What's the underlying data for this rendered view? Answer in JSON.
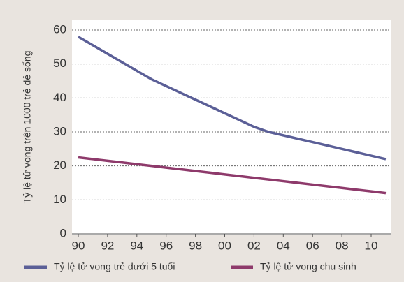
{
  "chart_data": {
    "type": "line",
    "y_label": "Tỷ lệ tử vong trên 1000 trẻ đẻ sống",
    "categories": [
      "90",
      null,
      "92",
      null,
      "94",
      null,
      "96",
      null,
      "98",
      null,
      "00",
      null,
      "02",
      null,
      "04",
      null,
      "06",
      null,
      "08",
      null,
      "10",
      null
    ],
    "series": [
      {
        "name": "Tỷ lệ tử vong trẻ dưới 5 tuổi",
        "color": "#5b5f97",
        "values": [
          58,
          55.5,
          53,
          50.5,
          48,
          45.5,
          43.5,
          41.5,
          39.5,
          37.5,
          35.5,
          33.5,
          31.5,
          30,
          29,
          28,
          27,
          26,
          25,
          24,
          23,
          22
        ]
      },
      {
        "name": "Tỷ lệ tử vong chu sinh",
        "color": "#8e3a6b",
        "values": [
          22.5,
          22,
          21.5,
          21,
          20.5,
          20,
          19.5,
          19,
          18.5,
          18,
          17.5,
          17,
          16.5,
          16,
          15.5,
          15,
          14.5,
          14,
          13.5,
          13,
          12.5,
          12
        ]
      }
    ],
    "ylim": [
      0,
      60
    ],
    "yticks": [
      0,
      10,
      20,
      30,
      40,
      50,
      60
    ],
    "grid": true
  }
}
